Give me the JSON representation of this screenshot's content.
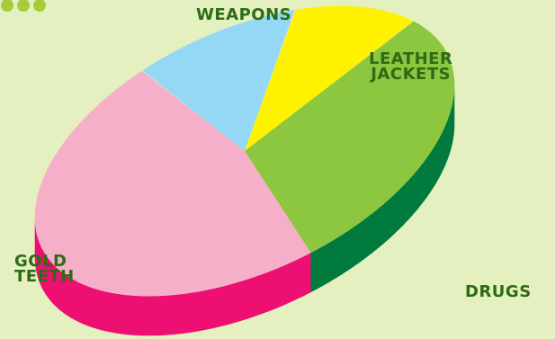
{
  "chart_data": {
    "type": "pie",
    "style": "3d",
    "title": "",
    "categories": [
      "WEAPONS",
      "LEATHER\nJACKETS",
      "DRUGS",
      "GOLD\nTEETH"
    ],
    "values": [
      12,
      11,
      30,
      47
    ],
    "colors": {
      "top": [
        "#94d8f6",
        "#fff200",
        "#8dc63f",
        "#f6afc8"
      ],
      "side": [
        "#6fb8d6",
        "#c9c000",
        "#007a3d",
        "#ed0f72"
      ]
    },
    "background": "#e4f0c0",
    "label_color": "#2d6b14",
    "decor_color": "#a6cc3a",
    "legend": "none"
  }
}
